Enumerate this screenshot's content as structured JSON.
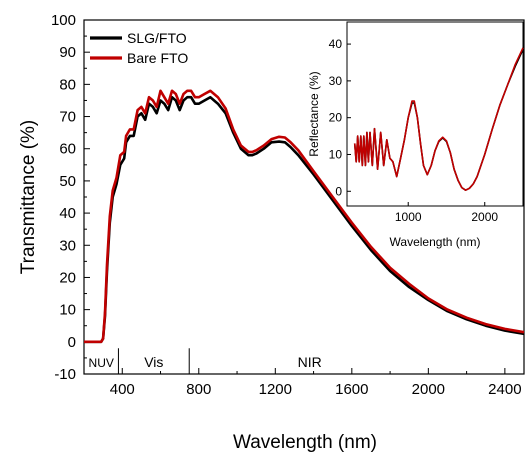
{
  "chart_data": [
    {
      "type": "line",
      "xlabel": "Wavelength (nm)",
      "ylabel": "Transmittance (%)",
      "xlim": [
        200,
        2500
      ],
      "ylim": [
        -10,
        100
      ],
      "xticks": [
        "400",
        "800",
        "1200",
        "1600",
        "2000",
        "2400"
      ],
      "yticks": [
        "-10",
        "0",
        "10",
        "20",
        "30",
        "40",
        "50",
        "60",
        "70",
        "80",
        "90",
        "100"
      ],
      "legend": "top-left",
      "grid": false,
      "regions": [
        {
          "label": "NUV",
          "start": 200,
          "end": 380
        },
        {
          "label": "Vis",
          "start": 380,
          "end": 750
        },
        {
          "label": "NIR",
          "start": 750,
          "end": 2500
        }
      ],
      "series": [
        {
          "name": "SLG/FTO",
          "color": "#000000",
          "x": [
            200,
            290,
            300,
            310,
            320,
            335,
            350,
            370,
            390,
            410,
            420,
            440,
            460,
            480,
            500,
            520,
            540,
            560,
            580,
            600,
            620,
            640,
            660,
            680,
            700,
            720,
            740,
            760,
            780,
            800,
            830,
            860,
            880,
            900,
            940,
            980,
            1020,
            1060,
            1080,
            1100,
            1140,
            1180,
            1220,
            1250,
            1280,
            1320,
            1400,
            1500,
            1600,
            1700,
            1800,
            1900,
            2000,
            2100,
            2200,
            2300,
            2400,
            2500
          ],
          "y": [
            0,
            0,
            1,
            8,
            22,
            37,
            45,
            49,
            55,
            57,
            62,
            64,
            64,
            70,
            71,
            69,
            74,
            73,
            71,
            75,
            74,
            72,
            76,
            75,
            72,
            75,
            76,
            76,
            74,
            74,
            75,
            76,
            75,
            74,
            71,
            65,
            60,
            58,
            58,
            58.5,
            60,
            62,
            62.2,
            62,
            60.5,
            58,
            52,
            44,
            36,
            28.5,
            22,
            17,
            13,
            9.5,
            7,
            5,
            3.5,
            2.5
          ]
        },
        {
          "name": "Bare FTO",
          "color": "#c00000",
          "x": [
            200,
            290,
            300,
            310,
            320,
            335,
            350,
            370,
            390,
            410,
            420,
            440,
            460,
            480,
            500,
            520,
            540,
            560,
            580,
            600,
            620,
            640,
            660,
            680,
            700,
            720,
            740,
            760,
            780,
            800,
            830,
            860,
            880,
            900,
            940,
            980,
            1020,
            1060,
            1080,
            1100,
            1140,
            1180,
            1220,
            1250,
            1280,
            1320,
            1400,
            1500,
            1600,
            1700,
            1800,
            1900,
            2000,
            2100,
            2200,
            2300,
            2400,
            2500
          ],
          "y": [
            0,
            0,
            1,
            9,
            24,
            39,
            47,
            51,
            58,
            59,
            64,
            66,
            66,
            72,
            73,
            71,
            76,
            75,
            73,
            78,
            76,
            74,
            78,
            77,
            74,
            77,
            78,
            78,
            76,
            76,
            77,
            78,
            77,
            76,
            72.5,
            66,
            61,
            59,
            59,
            59.5,
            61,
            63,
            63.7,
            63.5,
            62,
            59.5,
            53,
            45,
            37,
            29.5,
            23,
            18,
            13.5,
            10,
            7.5,
            5.5,
            4,
            3
          ]
        }
      ]
    },
    {
      "type": "line",
      "xlabel": "Wavelength (nm)",
      "ylabel": "Reflectance (%)",
      "xlim": [
        200,
        2500
      ],
      "ylim": [
        -4,
        46
      ],
      "xticks": [
        "1000",
        "2000"
      ],
      "yticks": [
        "0",
        "10",
        "20",
        "30",
        "40"
      ],
      "grid": false,
      "series": [
        {
          "color": "#000000",
          "x": [
            300,
            320,
            340,
            360,
            380,
            400,
            420,
            440,
            460,
            480,
            500,
            530,
            560,
            600,
            640,
            680,
            720,
            760,
            800,
            850,
            900,
            950,
            1000,
            1050,
            1080,
            1120,
            1160,
            1200,
            1250,
            1300,
            1350,
            1400,
            1450,
            1500,
            1550,
            1600,
            1650,
            1700,
            1750,
            1800,
            1850,
            1900,
            2000,
            2100,
            2200,
            2300,
            2400,
            2500
          ],
          "y": [
            13,
            8,
            15,
            8,
            15,
            7,
            15,
            7,
            16,
            8,
            16,
            7,
            17,
            6,
            16,
            7,
            14,
            9,
            8,
            4,
            9,
            14,
            20,
            24,
            24,
            20,
            13,
            7,
            4.5,
            7,
            11,
            13.5,
            14.5,
            13.5,
            10.5,
            6,
            3,
            1,
            0.3,
            0.8,
            2,
            4,
            10,
            17,
            23.5,
            29,
            34,
            38.5
          ]
        },
        {
          "color": "#c00000",
          "x": [
            300,
            320,
            340,
            360,
            380,
            400,
            420,
            440,
            460,
            480,
            500,
            530,
            560,
            600,
            640,
            680,
            720,
            760,
            800,
            850,
            900,
            950,
            1000,
            1050,
            1080,
            1120,
            1160,
            1200,
            1250,
            1300,
            1350,
            1400,
            1450,
            1500,
            1550,
            1600,
            1650,
            1700,
            1750,
            1800,
            1850,
            1900,
            2000,
            2100,
            2200,
            2300,
            2400,
            2500
          ],
          "y": [
            13,
            8,
            15,
            8,
            15,
            7,
            15,
            7,
            16,
            8,
            16,
            7,
            17,
            6,
            16,
            7,
            14,
            9,
            8,
            4,
            9,
            14,
            20,
            24.5,
            24.5,
            20,
            13,
            7,
            4.5,
            7,
            11,
            13.7,
            14.7,
            13.7,
            10.5,
            6,
            3,
            1,
            0.3,
            0.8,
            2,
            4,
            10,
            17,
            23.5,
            29,
            34.5,
            39
          ]
        }
      ]
    }
  ]
}
